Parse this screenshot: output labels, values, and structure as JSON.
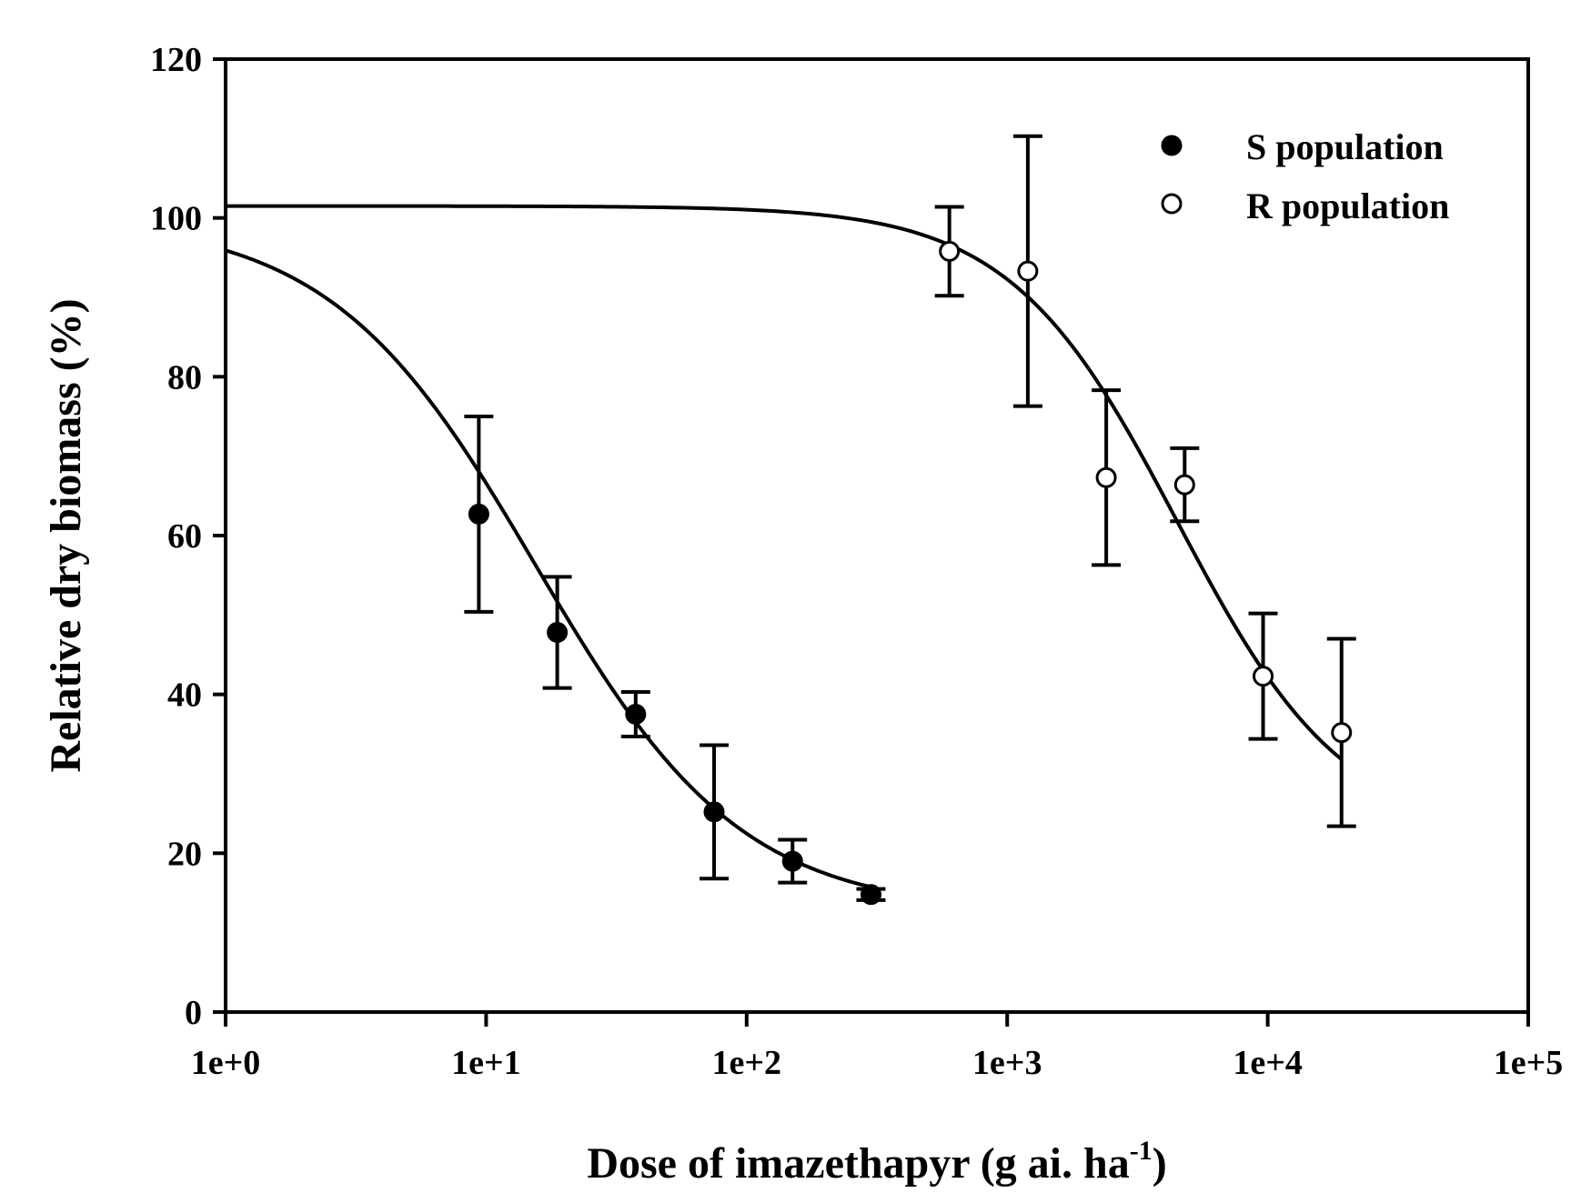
{
  "chart_data": {
    "type": "scatter",
    "title": "",
    "xlabel": "Dose of imazethapyr (g ai. ha",
    "xlabel_superscript": "-1",
    "xlabel_suffix": ")",
    "ylabel": "Relative dry biomass (%)",
    "xscale": "log",
    "xlim": [
      1,
      100000
    ],
    "ylim": [
      0,
      120
    ],
    "xticks": [
      1,
      10,
      100,
      1000,
      10000,
      100000
    ],
    "xtick_labels": [
      "1e+0",
      "1e+1",
      "1e+2",
      "1e+3",
      "1e+4",
      "1e+5"
    ],
    "yticks": [
      0,
      20,
      40,
      60,
      80,
      100,
      120
    ],
    "ytick_labels": [
      "0",
      "20",
      "40",
      "60",
      "80",
      "100",
      "120"
    ],
    "grid": false,
    "legend_position": "top-right",
    "series": [
      {
        "name": "S population",
        "marker": "filled-circle",
        "x": [
          9.375,
          18.75,
          37.5,
          75,
          150,
          300
        ],
        "y": [
          62.7,
          47.8,
          37.5,
          25.2,
          19.0,
          14.8
        ],
        "error": [
          12.3,
          7.0,
          2.8,
          8.4,
          2.7,
          0.7
        ],
        "fit": {
          "model": "log-logistic-4",
          "top": 100,
          "bottom": 12.5,
          "ed50": 15.5,
          "slope": 1.1,
          "x_range": [
            1,
            300
          ]
        }
      },
      {
        "name": "R population",
        "marker": "open-circle",
        "x": [
          600,
          1200,
          2400,
          4800,
          9600,
          19200
        ],
        "y": [
          95.8,
          93.3,
          67.3,
          66.4,
          42.3,
          35.2
        ],
        "error": [
          5.6,
          17.0,
          11.0,
          4.6,
          7.9,
          11.8
        ],
        "fit": {
          "model": "log-logistic-4",
          "top": 101.5,
          "bottom": 22,
          "ed50": 4500,
          "slope": 1.35,
          "x_range": [
            1,
            19200
          ]
        }
      }
    ]
  }
}
